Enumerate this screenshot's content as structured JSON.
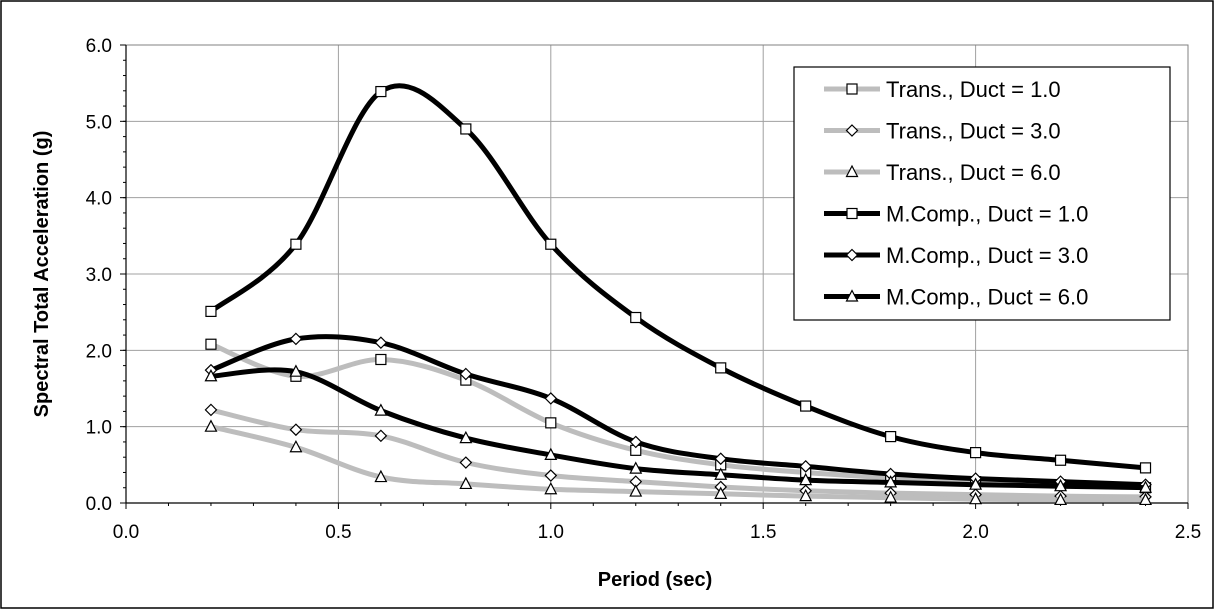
{
  "chart_data": {
    "type": "line",
    "title": "",
    "xlabel": "Period (sec)",
    "ylabel": "Spectral Total Acceleration (g)",
    "xlim": [
      0,
      2.5
    ],
    "ylim": [
      0,
      6
    ],
    "xticks": [
      "0.0",
      "0.5",
      "1.0",
      "1.5",
      "2.0",
      "2.5"
    ],
    "yticks": [
      "0.0",
      "1.0",
      "2.0",
      "3.0",
      "4.0",
      "5.0",
      "6.0"
    ],
    "grid": true,
    "legend_position": "top-right",
    "series": [
      {
        "name": "Trans., Duct = 1.0",
        "color": "#bdbdbd",
        "marker": "square",
        "x": [
          0.2,
          0.4,
          0.6,
          0.8,
          1.0,
          1.2,
          1.4,
          1.6,
          1.8,
          2.0,
          2.2,
          2.4
        ],
        "y": [
          2.08,
          1.66,
          1.88,
          1.61,
          1.05,
          0.69,
          0.5,
          0.4,
          0.33,
          0.28,
          0.24,
          0.2
        ]
      },
      {
        "name": "Trans., Duct = 3.0",
        "color": "#bdbdbd",
        "marker": "diamond",
        "x": [
          0.2,
          0.4,
          0.6,
          0.8,
          1.0,
          1.2,
          1.4,
          1.6,
          1.8,
          2.0,
          2.2,
          2.4
        ],
        "y": [
          1.22,
          0.96,
          0.88,
          0.53,
          0.36,
          0.28,
          0.21,
          0.16,
          0.13,
          0.11,
          0.09,
          0.08
        ]
      },
      {
        "name": "Trans., Duct = 6.0",
        "color": "#bdbdbd",
        "marker": "triangle",
        "x": [
          0.2,
          0.4,
          0.6,
          0.8,
          1.0,
          1.2,
          1.4,
          1.6,
          1.8,
          2.0,
          2.2,
          2.4
        ],
        "y": [
          1.0,
          0.73,
          0.34,
          0.25,
          0.18,
          0.15,
          0.12,
          0.09,
          0.07,
          0.05,
          0.04,
          0.04
        ]
      },
      {
        "name": "M.Comp., Duct = 1.0",
        "color": "#000000",
        "marker": "square",
        "x": [
          0.2,
          0.4,
          0.6,
          0.8,
          1.0,
          1.2,
          1.4,
          1.6,
          1.8,
          2.0,
          2.2,
          2.4
        ],
        "y": [
          2.51,
          3.39,
          5.39,
          4.9,
          3.39,
          2.43,
          1.77,
          1.27,
          0.87,
          0.66,
          0.56,
          0.46
        ]
      },
      {
        "name": "M.Comp., Duct = 3.0",
        "color": "#000000",
        "marker": "diamond",
        "x": [
          0.2,
          0.4,
          0.6,
          0.8,
          1.0,
          1.2,
          1.4,
          1.6,
          1.8,
          2.0,
          2.2,
          2.4
        ],
        "y": [
          1.74,
          2.15,
          2.1,
          1.69,
          1.37,
          0.8,
          0.58,
          0.48,
          0.38,
          0.32,
          0.28,
          0.24
        ]
      },
      {
        "name": "M.Comp., Duct = 6.0",
        "color": "#000000",
        "marker": "triangle",
        "x": [
          0.2,
          0.4,
          0.6,
          0.8,
          1.0,
          1.2,
          1.4,
          1.6,
          1.8,
          2.0,
          2.2,
          2.4
        ],
        "y": [
          1.66,
          1.72,
          1.21,
          0.85,
          0.63,
          0.45,
          0.37,
          0.3,
          0.27,
          0.24,
          0.22,
          0.2
        ]
      }
    ]
  }
}
